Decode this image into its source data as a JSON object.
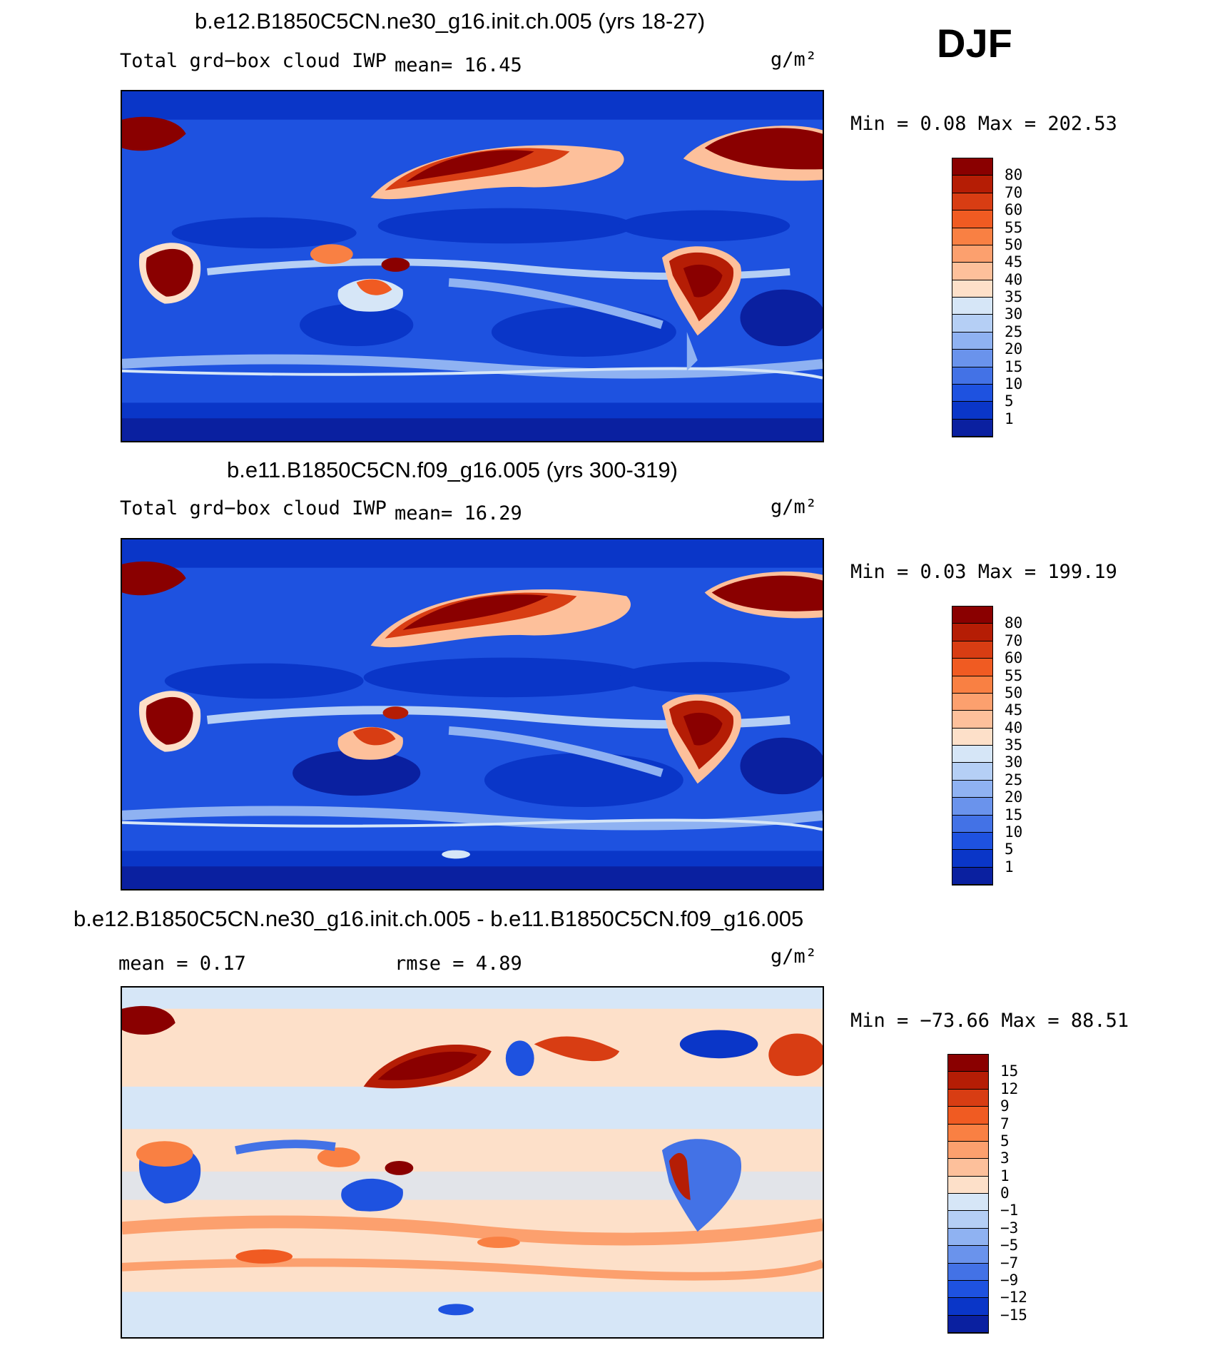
{
  "season": "DJF",
  "panels": [
    {
      "id": "model1",
      "title": "b.e12.B1850C5CN.ne30_g16.init.ch.005 (yrs 18-27)",
      "left_label": "Total grd−box cloud IWP",
      "mean_text": "mean=   16.45",
      "units": "g/m²",
      "minmax": "Min =    0.08 Max = 202.53",
      "colorbar": {
        "labels": [
          "80",
          "70",
          "60",
          "55",
          "50",
          "45",
          "40",
          "35",
          "30",
          "25",
          "20",
          "15",
          "10",
          "5",
          "1"
        ],
        "colors": [
          "#8a0000",
          "#b51d05",
          "#d83d13",
          "#f05b22",
          "#f98043",
          "#fca06e",
          "#fdc09b",
          "#fde0c9",
          "#d6e6f7",
          "#b5cff5",
          "#8fb2f2",
          "#6a93ec",
          "#4372e6",
          "#1e52e0",
          "#0a36c8",
          "#0a20a0"
        ]
      }
    },
    {
      "id": "model2",
      "title": "b.e11.B1850C5CN.f09_g16.005 (yrs 300-319)",
      "left_label": "Total grd−box cloud IWP",
      "mean_text": "mean=   16.29",
      "units": "g/m²",
      "minmax": "Min =    0.03 Max = 199.19",
      "colorbar": {
        "labels": [
          "80",
          "70",
          "60",
          "55",
          "50",
          "45",
          "40",
          "35",
          "30",
          "25",
          "20",
          "15",
          "10",
          "5",
          "1"
        ],
        "colors": [
          "#8a0000",
          "#b51d05",
          "#d83d13",
          "#f05b22",
          "#f98043",
          "#fca06e",
          "#fdc09b",
          "#fde0c9",
          "#d6e6f7",
          "#b5cff5",
          "#8fb2f2",
          "#6a93ec",
          "#4372e6",
          "#1e52e0",
          "#0a36c8",
          "#0a20a0"
        ]
      }
    },
    {
      "id": "diff",
      "title": "b.e12.B1850C5CN.ne30_g16.init.ch.005 - b.e11.B1850C5CN.f09_g16.005",
      "left_label": "mean =    0.17",
      "mean_text": "rmse =    4.89",
      "units": "g/m²",
      "minmax": "Min = −73.66 Max =   88.51",
      "colorbar": {
        "labels": [
          "15",
          "12",
          "9",
          "7",
          "5",
          "3",
          "1",
          "0",
          "−1",
          "−3",
          "−5",
          "−7",
          "−9",
          "−12",
          "−15"
        ],
        "colors": [
          "#8a0000",
          "#b51d05",
          "#d83d13",
          "#f05b22",
          "#f98043",
          "#fca06e",
          "#fdc09b",
          "#fde0c9",
          "#d6e6f7",
          "#b5cff5",
          "#8fb2f2",
          "#6a93ec",
          "#4372e6",
          "#1e52e0",
          "#0a36c8",
          "#0a20a0"
        ]
      }
    }
  ]
}
